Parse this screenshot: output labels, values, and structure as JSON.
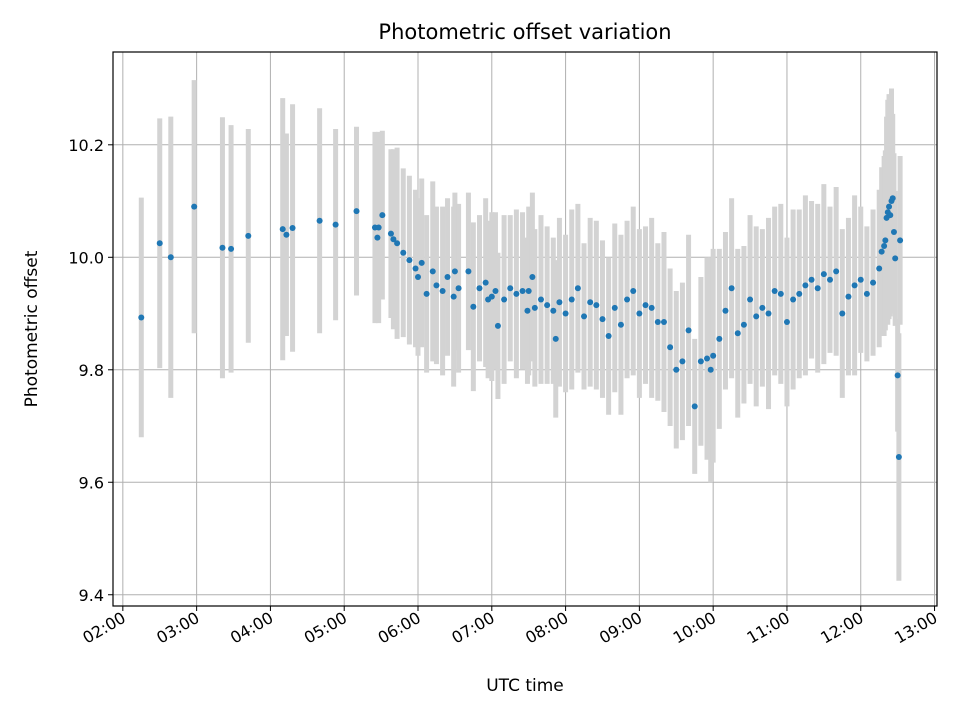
{
  "chart_data": {
    "type": "scatter",
    "title": "Photometric offset variation",
    "xlabel": "UTC time",
    "ylabel": "Photometric offset",
    "grid": true,
    "xlim": [
      "01:52",
      "13:02"
    ],
    "ylim": [
      9.38,
      10.365
    ],
    "x_ticks": [
      "02:00",
      "03:00",
      "04:00",
      "05:00",
      "06:00",
      "07:00",
      "08:00",
      "09:00",
      "10:00",
      "11:00",
      "12:00",
      "13:00"
    ],
    "y_ticks": [
      9.4,
      9.6,
      9.8,
      10.0,
      10.2
    ],
    "point_color": "#1f77b4",
    "errorbar_color": "#d3d3d3",
    "series": [
      {
        "x": [
          "02:15",
          "02:30",
          "02:39",
          "02:58",
          "03:21",
          "03:28",
          "03:42",
          "04:10",
          "04:13",
          "04:18",
          "04:40",
          "04:53",
          "05:10",
          "05:25",
          "05:27",
          "05:28",
          "05:31",
          "05:38",
          "05:40",
          "05:43",
          "05:48",
          "05:53",
          "05:58",
          "06:00",
          "06:03",
          "06:07",
          "06:12",
          "06:15",
          "06:20",
          "06:24",
          "06:29",
          "06:30",
          "06:33",
          "06:41",
          "06:45",
          "06:50",
          "06:55",
          "06:57",
          "07:00",
          "07:03",
          "07:05",
          "07:10",
          "07:15",
          "07:20",
          "07:25",
          "07:29",
          "07:30",
          "07:33",
          "07:35",
          "07:40",
          "07:45",
          "07:50",
          "07:52",
          "07:55",
          "08:00",
          "08:05",
          "08:10",
          "08:15",
          "08:20",
          "08:25",
          "08:30",
          "08:35",
          "08:40",
          "08:45",
          "08:50",
          "08:55",
          "09:00",
          "09:05",
          "09:10",
          "09:15",
          "09:20",
          "09:25",
          "09:30",
          "09:35",
          "09:40",
          "09:45",
          "09:50",
          "09:55",
          "09:58",
          "10:00",
          "10:05",
          "10:10",
          "10:15",
          "10:20",
          "10:25",
          "10:30",
          "10:35",
          "10:40",
          "10:45",
          "10:50",
          "10:55",
          "11:00",
          "11:05",
          "11:10",
          "11:15",
          "11:20",
          "11:25",
          "11:30",
          "11:35",
          "11:40",
          "11:45",
          "11:50",
          "11:55",
          "12:00",
          "12:05",
          "12:10",
          "12:15",
          "12:17",
          "12:19",
          "12:20",
          "12:21",
          "12:22",
          "12:23",
          "12:24",
          "12:25",
          "12:26",
          "12:27",
          "12:28",
          "12:30",
          "12:31",
          "12:32"
        ],
        "y": [
          9.893,
          10.025,
          10.0,
          10.09,
          10.017,
          10.015,
          10.038,
          10.05,
          10.04,
          10.052,
          10.065,
          10.058,
          10.082,
          10.053,
          10.035,
          10.053,
          10.075,
          10.042,
          10.032,
          10.025,
          10.008,
          9.995,
          9.98,
          9.965,
          9.99,
          9.935,
          9.975,
          9.95,
          9.94,
          9.965,
          9.93,
          9.975,
          9.945,
          9.975,
          9.912,
          9.945,
          9.955,
          9.925,
          9.93,
          9.94,
          9.878,
          9.925,
          9.945,
          9.935,
          9.94,
          9.905,
          9.94,
          9.965,
          9.91,
          9.925,
          9.915,
          9.905,
          9.855,
          9.92,
          9.9,
          9.925,
          9.945,
          9.895,
          9.92,
          9.915,
          9.89,
          9.86,
          9.91,
          9.88,
          9.925,
          9.94,
          9.9,
          9.915,
          9.91,
          9.885,
          9.885,
          9.84,
          9.8,
          9.815,
          9.87,
          9.735,
          9.815,
          9.82,
          9.8,
          9.825,
          9.855,
          9.905,
          9.945,
          9.865,
          9.88,
          9.925,
          9.895,
          9.91,
          9.9,
          9.94,
          9.935,
          9.885,
          9.925,
          9.935,
          9.95,
          9.96,
          9.945,
          9.97,
          9.96,
          9.975,
          9.9,
          9.93,
          9.95,
          9.96,
          9.935,
          9.955,
          9.98,
          10.01,
          10.02,
          10.03,
          10.07,
          10.08,
          10.09,
          10.075,
          10.1,
          10.105,
          10.045,
          9.998,
          9.79,
          9.645,
          10.03
        ],
        "err": [
          0.213,
          0.222,
          0.25,
          0.225,
          0.232,
          0.22,
          0.19,
          0.233,
          0.18,
          0.22,
          0.2,
          0.17,
          0.15,
          0.17,
          0.15,
          0.17,
          0.15,
          0.15,
          0.16,
          0.17,
          0.15,
          0.15,
          0.14,
          0.14,
          0.15,
          0.14,
          0.16,
          0.14,
          0.15,
          0.14,
          0.16,
          0.14,
          0.15,
          0.14,
          0.15,
          0.13,
          0.15,
          0.14,
          0.15,
          0.14,
          0.13,
          0.15,
          0.13,
          0.15,
          0.14,
          0.13,
          0.15,
          0.15,
          0.14,
          0.15,
          0.14,
          0.13,
          0.14,
          0.15,
          0.14,
          0.16,
          0.15,
          0.13,
          0.15,
          0.15,
          0.14,
          0.14,
          0.15,
          0.16,
          0.14,
          0.15,
          0.15,
          0.14,
          0.16,
          0.14,
          0.16,
          0.14,
          0.14,
          0.14,
          0.17,
          0.12,
          0.15,
          0.18,
          0.2,
          0.19,
          0.16,
          0.14,
          0.16,
          0.15,
          0.14,
          0.15,
          0.16,
          0.14,
          0.17,
          0.15,
          0.16,
          0.15,
          0.16,
          0.15,
          0.16,
          0.14,
          0.15,
          0.16,
          0.13,
          0.15,
          0.15,
          0.14,
          0.16,
          0.13,
          0.12,
          0.13,
          0.14,
          0.15,
          0.16,
          0.16,
          0.18,
          0.2,
          0.2,
          0.18,
          0.2,
          0.15,
          0.14,
          0.12,
          0.1,
          0.22,
          0.15
        ]
      }
    ]
  }
}
